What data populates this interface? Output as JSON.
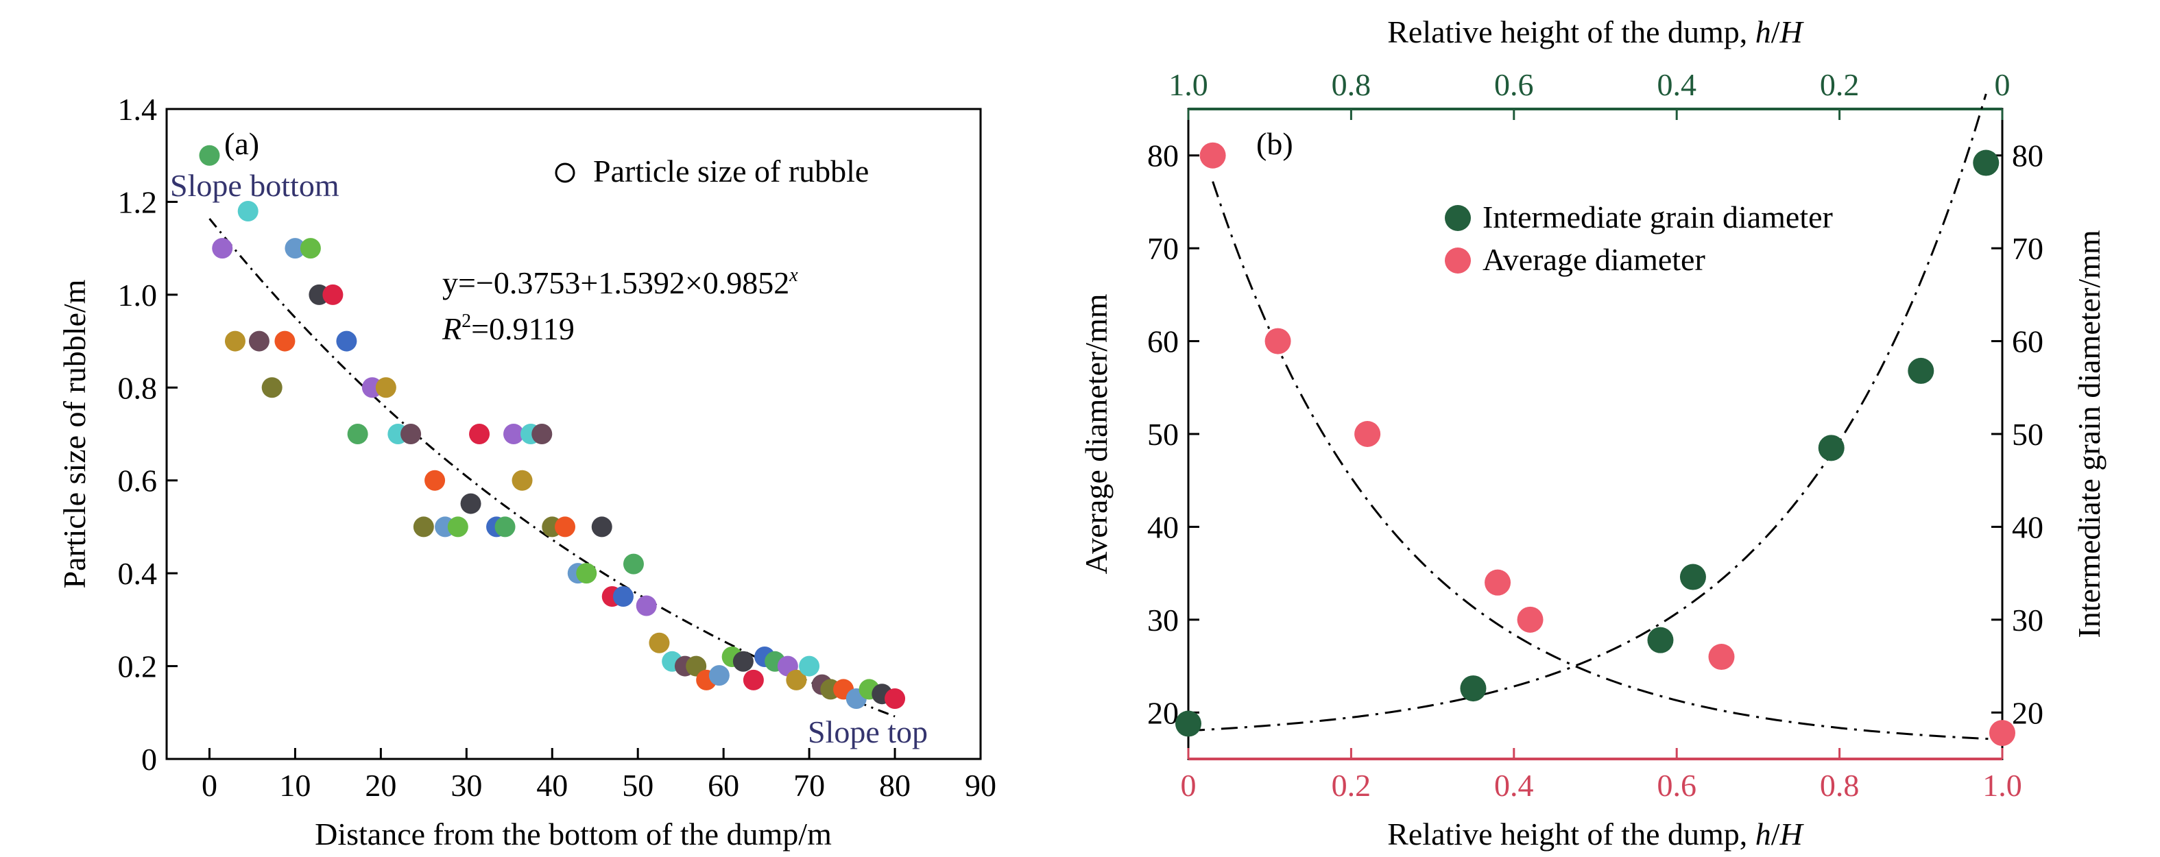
{
  "chart_data": [
    {
      "type": "scatter",
      "panel_label": "(a)",
      "xlabel": "Distance from the bottom of the dump/m",
      "ylabel": "Particle size of rubble/m",
      "xlim": [
        -5,
        90
      ],
      "ylim": [
        0,
        1.4
      ],
      "xticks": [
        "0",
        "10",
        "20",
        "30",
        "40",
        "50",
        "60",
        "70",
        "80",
        "90"
      ],
      "yticks": [
        "0",
        "0.2",
        "0.4",
        "0.6",
        "0.8",
        "1.0",
        "1.2",
        "1.4"
      ],
      "legend": {
        "label": "Particle size of rubble",
        "placement": "top-right"
      },
      "equation": "y=−0.3753+1.5392×0.9852",
      "equation_exp": "x",
      "r2_label": "R",
      "r2_sup": "2",
      "r2_value": "=0.9119",
      "annotations": {
        "bottom": "Slope bottom",
        "top": "Slope top"
      },
      "fit": {
        "a": -0.3753,
        "b": 1.5392,
        "c": 0.9852,
        "x_from": 0,
        "x_to": 80
      },
      "series": [
        {
          "name": "Particle size of rubble",
          "points": [
            {
              "x": 0.0,
              "y": 1.3,
              "color": "#4daa60"
            },
            {
              "x": 1.5,
              "y": 1.1,
              "color": "#9966cc"
            },
            {
              "x": 3.0,
              "y": 0.9,
              "color": "#b8922a"
            },
            {
              "x": 4.5,
              "y": 1.18,
              "color": "#55cccc"
            },
            {
              "x": 5.8,
              "y": 0.9,
              "color": "#6b4a5a"
            },
            {
              "x": 7.3,
              "y": 0.8,
              "color": "#7a7a30"
            },
            {
              "x": 8.8,
              "y": 0.9,
              "color": "#ee5522"
            },
            {
              "x": 10.0,
              "y": 1.1,
              "color": "#6699cc"
            },
            {
              "x": 11.8,
              "y": 1.1,
              "color": "#66bb44"
            },
            {
              "x": 12.8,
              "y": 1.0,
              "color": "#404048"
            },
            {
              "x": 14.4,
              "y": 1.0,
              "color": "#dd2244"
            },
            {
              "x": 16.0,
              "y": 0.9,
              "color": "#3d6bc4"
            },
            {
              "x": 17.3,
              "y": 0.7,
              "color": "#4daa60"
            },
            {
              "x": 19.0,
              "y": 0.8,
              "color": "#9966cc"
            },
            {
              "x": 20.6,
              "y": 0.8,
              "color": "#b8922a"
            },
            {
              "x": 22.0,
              "y": 0.7,
              "color": "#55cccc"
            },
            {
              "x": 23.5,
              "y": 0.7,
              "color": "#6b4a5a"
            },
            {
              "x": 25.0,
              "y": 0.5,
              "color": "#7a7a30"
            },
            {
              "x": 26.3,
              "y": 0.6,
              "color": "#ee5522"
            },
            {
              "x": 27.5,
              "y": 0.5,
              "color": "#6699cc"
            },
            {
              "x": 29.0,
              "y": 0.5,
              "color": "#66bb44"
            },
            {
              "x": 30.5,
              "y": 0.55,
              "color": "#404048"
            },
            {
              "x": 31.5,
              "y": 0.7,
              "color": "#dd2244"
            },
            {
              "x": 33.5,
              "y": 0.5,
              "color": "#3d6bc4"
            },
            {
              "x": 34.5,
              "y": 0.5,
              "color": "#4daa60"
            },
            {
              "x": 35.5,
              "y": 0.7,
              "color": "#9966cc"
            },
            {
              "x": 36.5,
              "y": 0.6,
              "color": "#b8922a"
            },
            {
              "x": 37.5,
              "y": 0.7,
              "color": "#55cccc"
            },
            {
              "x": 38.8,
              "y": 0.7,
              "color": "#6b4a5a"
            },
            {
              "x": 40.0,
              "y": 0.5,
              "color": "#7a7a30"
            },
            {
              "x": 41.5,
              "y": 0.5,
              "color": "#ee5522"
            },
            {
              "x": 43.0,
              "y": 0.4,
              "color": "#6699cc"
            },
            {
              "x": 44.0,
              "y": 0.4,
              "color": "#66bb44"
            },
            {
              "x": 45.8,
              "y": 0.5,
              "color": "#404048"
            },
            {
              "x": 47.0,
              "y": 0.35,
              "color": "#dd2244"
            },
            {
              "x": 48.3,
              "y": 0.35,
              "color": "#3d6bc4"
            },
            {
              "x": 49.5,
              "y": 0.42,
              "color": "#4daa60"
            },
            {
              "x": 51.0,
              "y": 0.33,
              "color": "#9966cc"
            },
            {
              "x": 52.5,
              "y": 0.25,
              "color": "#b8922a"
            },
            {
              "x": 54.0,
              "y": 0.21,
              "color": "#55cccc"
            },
            {
              "x": 55.5,
              "y": 0.2,
              "color": "#6b4a5a"
            },
            {
              "x": 56.8,
              "y": 0.2,
              "color": "#7a7a30"
            },
            {
              "x": 58.0,
              "y": 0.17,
              "color": "#ee5522"
            },
            {
              "x": 59.5,
              "y": 0.18,
              "color": "#6699cc"
            },
            {
              "x": 61.0,
              "y": 0.22,
              "color": "#66bb44"
            },
            {
              "x": 62.3,
              "y": 0.21,
              "color": "#404048"
            },
            {
              "x": 63.5,
              "y": 0.17,
              "color": "#dd2244"
            },
            {
              "x": 64.8,
              "y": 0.22,
              "color": "#3d6bc4"
            },
            {
              "x": 66.0,
              "y": 0.21,
              "color": "#4daa60"
            },
            {
              "x": 67.5,
              "y": 0.2,
              "color": "#9966cc"
            },
            {
              "x": 68.5,
              "y": 0.17,
              "color": "#b8922a"
            },
            {
              "x": 70.0,
              "y": 0.2,
              "color": "#55cccc"
            },
            {
              "x": 71.5,
              "y": 0.16,
              "color": "#6b4a5a"
            },
            {
              "x": 72.5,
              "y": 0.15,
              "color": "#7a7a30"
            },
            {
              "x": 74.0,
              "y": 0.15,
              "color": "#ee5522"
            },
            {
              "x": 75.5,
              "y": 0.13,
              "color": "#6699cc"
            },
            {
              "x": 77.0,
              "y": 0.15,
              "color": "#66bb44"
            },
            {
              "x": 78.5,
              "y": 0.14,
              "color": "#404048"
            },
            {
              "x": 80.0,
              "y": 0.13,
              "color": "#dd2244"
            }
          ]
        }
      ]
    },
    {
      "type": "scatter",
      "panel_label": "(b)",
      "xlabel_bottom": "Relative height of the dump, ",
      "xlabel_top": "Relative height of the dump, ",
      "xlabel_var": "h",
      "xlabel_var2": "H",
      "ylabel_left": "Average diameter/mm",
      "ylabel_right": "Intermediate grain diameter/mm",
      "x_bottom_lim": [
        0,
        1.0
      ],
      "x_top_lim": [
        1.0,
        0
      ],
      "ylim": [
        15,
        85
      ],
      "x_bottom_ticks": [
        "0",
        "0.2",
        "0.4",
        "0.6",
        "0.8",
        "1.0"
      ],
      "x_top_ticks": [
        "1.0",
        "0.8",
        "0.6",
        "0.4",
        "0.2",
        "0"
      ],
      "y_ticks": [
        "20",
        "30",
        "40",
        "50",
        "60",
        "70",
        "80"
      ],
      "axis_colors": {
        "bottom": "#d0445a",
        "top": "#1f5a3a"
      },
      "legend_placement": "top-center",
      "series": [
        {
          "name": "Intermediate grain diameter",
          "color": "#235f3d",
          "axis": "top",
          "x": [
            1.0,
            0.65,
            0.42,
            0.38,
            0.21,
            0.1,
            0.02
          ],
          "y": [
            18.8,
            22.6,
            27.8,
            34.6,
            48.5,
            56.8,
            79.2
          ]
        },
        {
          "name": "Average diameter",
          "color": "#ee5a6c",
          "axis": "bottom",
          "x": [
            0.03,
            0.11,
            0.22,
            0.38,
            0.42,
            0.655,
            1.0
          ],
          "y": [
            80.0,
            60.0,
            50.0,
            34.0,
            30.0,
            26.0,
            17.8
          ]
        }
      ]
    }
  ]
}
